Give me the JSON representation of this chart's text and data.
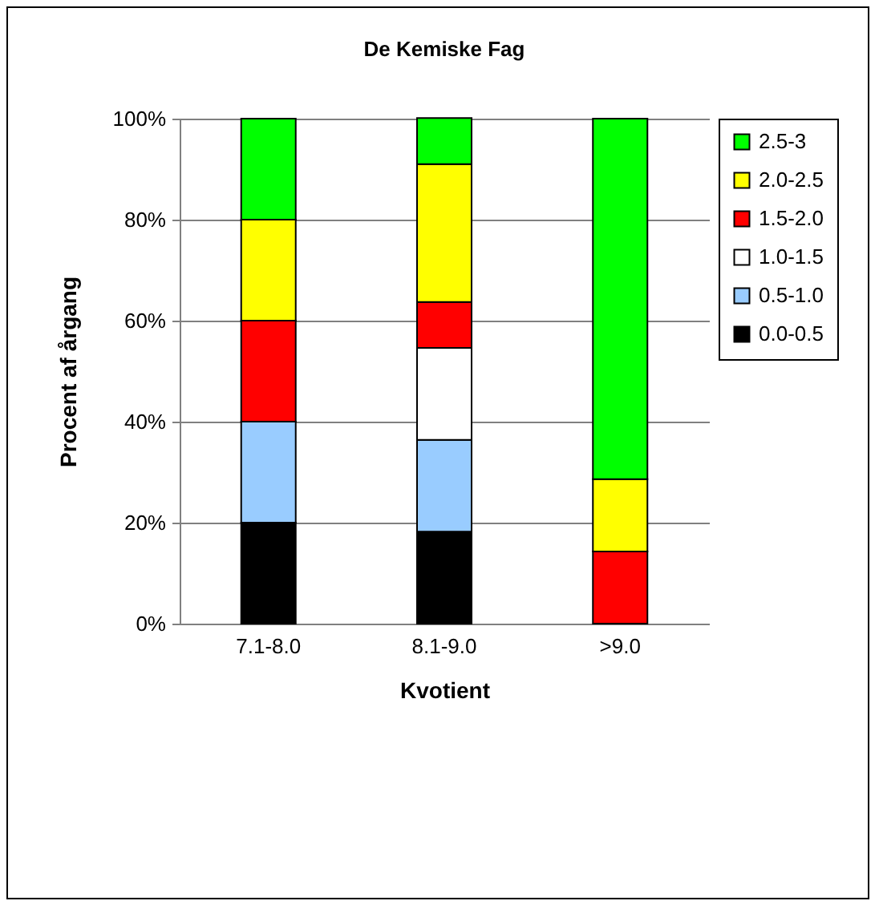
{
  "chart_data": {
    "type": "bar",
    "title": "De Kemiske Fag",
    "xlabel": "Kvotient",
    "ylabel": "Procent af årgang",
    "categories": [
      "7.1-8.0",
      "8.1-9.0",
      ">9.0"
    ],
    "stacked": true,
    "ylim": [
      0,
      100
    ],
    "yticks": [
      {
        "value": 0,
        "label": "0%"
      },
      {
        "value": 20,
        "label": "20%"
      },
      {
        "value": 40,
        "label": "40%"
      },
      {
        "value": 60,
        "label": "60%"
      },
      {
        "value": 80,
        "label": "80%"
      },
      {
        "value": 100,
        "label": "100%"
      }
    ],
    "grid": "y",
    "legend": "right",
    "series": [
      {
        "name": "0.0-0.5",
        "color": "#000000",
        "values": [
          20,
          18.2,
          0
        ]
      },
      {
        "name": "0.5-1.0",
        "color": "#99ccff",
        "values": [
          20,
          18.2,
          0
        ]
      },
      {
        "name": "1.0-1.5",
        "color": "#ffffff",
        "values": [
          0,
          18.2,
          0
        ]
      },
      {
        "name": "1.5-2.0",
        "color": "#ff0000",
        "values": [
          20,
          9.1,
          14.3
        ]
      },
      {
        "name": "2.0-2.5",
        "color": "#ffff00",
        "values": [
          20,
          27.3,
          14.3
        ]
      },
      {
        "name": "2.5-3",
        "color": "#00ff00",
        "values": [
          20,
          9.1,
          71.4
        ]
      }
    ]
  }
}
